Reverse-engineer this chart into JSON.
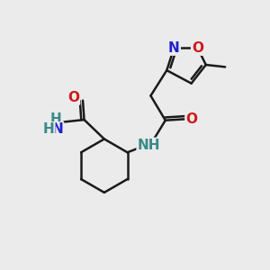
{
  "background_color": "#ebebeb",
  "bond_color": "#1a1a1a",
  "bond_width": 1.8,
  "atom_colors": {
    "N": "#2020cc",
    "O": "#cc1a1a",
    "C": "#1a1a1a",
    "H": "#3a8a8a"
  },
  "font_size_atom": 11,
  "font_size_small": 9
}
